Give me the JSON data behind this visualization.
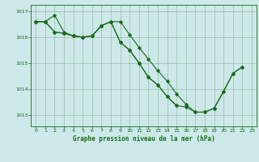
{
  "title": "Graphe pression niveau de la mer (hPa)",
  "bg_color": "#cce8e8",
  "line_color": "#1a6b1a",
  "grid_color": "#99bbaa",
  "xlim": [
    -0.5,
    23.5
  ],
  "ylim": [
    1012.55,
    1017.25
  ],
  "yticks": [
    1013,
    1014,
    1015,
    1016,
    1017
  ],
  "xticks": [
    0,
    1,
    2,
    3,
    4,
    5,
    6,
    7,
    8,
    9,
    10,
    11,
    12,
    13,
    14,
    15,
    16,
    17,
    18,
    19,
    20,
    21,
    22,
    23
  ],
  "series1_x": [
    0,
    1,
    2,
    3,
    4,
    5,
    6,
    7,
    8,
    9,
    10,
    11,
    12,
    13,
    14,
    15,
    16,
    17,
    18,
    19,
    20,
    21,
    22,
    23
  ],
  "series1_y": [
    1016.6,
    1016.6,
    1016.85,
    1016.2,
    1016.05,
    1016.0,
    1016.05,
    1016.45,
    1016.6,
    1016.6,
    1016.1,
    1015.6,
    1015.15,
    1014.7,
    1014.3,
    1013.8,
    1013.4,
    1013.1,
    1013.1,
    1013.25,
    1013.9,
    1014.6,
    1014.85,
    null
  ],
  "series2_x": [
    0,
    1,
    2,
    3,
    4,
    5,
    6,
    7,
    8,
    9,
    10,
    11,
    12,
    13,
    14,
    15,
    16,
    17,
    18,
    19,
    20,
    21,
    22,
    23
  ],
  "series2_y": [
    1016.6,
    1016.6,
    1016.2,
    1016.15,
    1016.05,
    1016.0,
    1016.05,
    1016.45,
    1016.6,
    1015.8,
    1015.5,
    1015.0,
    1014.45,
    1014.15,
    1013.7,
    1013.35,
    null,
    null,
    null,
    null,
    null,
    null,
    null,
    null
  ],
  "series3_x": [
    0,
    1,
    2,
    3,
    4,
    5,
    6,
    7,
    8,
    9,
    10,
    11,
    12,
    13,
    14,
    15,
    16,
    17,
    18,
    19,
    20,
    21,
    22,
    23
  ],
  "series3_y": [
    1016.6,
    1016.6,
    1016.2,
    1016.15,
    1016.05,
    1016.0,
    1016.05,
    1016.45,
    1016.6,
    1015.8,
    1015.5,
    1015.0,
    1014.45,
    1014.15,
    1013.7,
    1013.35,
    1013.3,
    1013.1,
    1013.1,
    1013.25,
    1013.9,
    1014.6,
    1014.85,
    null
  ]
}
